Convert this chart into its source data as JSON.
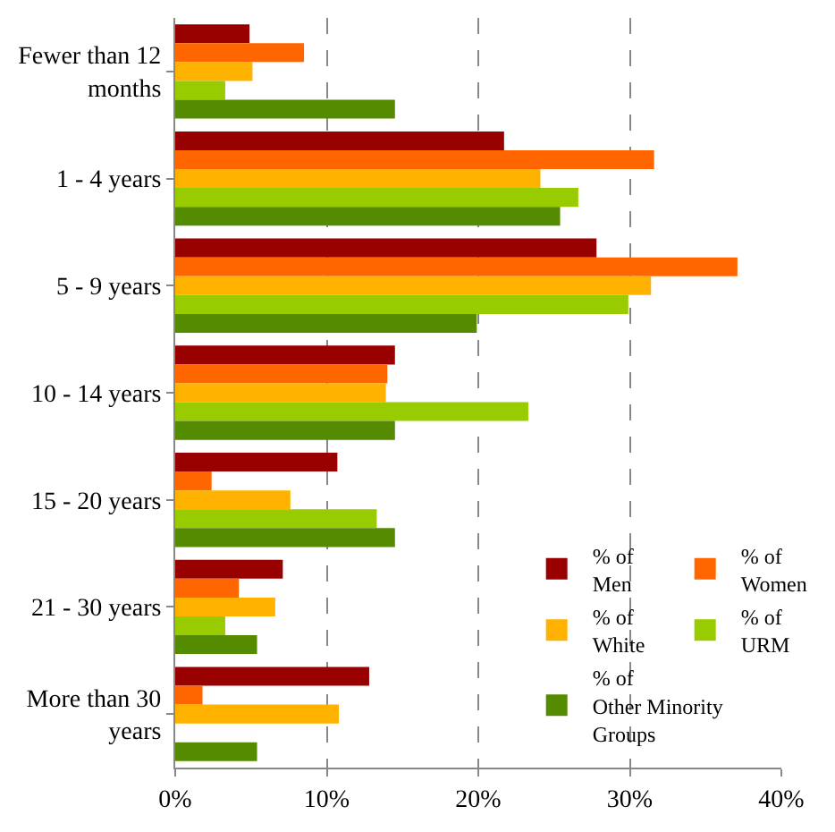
{
  "chart_data": {
    "type": "bar",
    "orientation": "horizontal",
    "categories": [
      "Fewer than 12 months",
      "1 - 4 years",
      "5 - 9 years",
      "10 - 14 years",
      "15 - 20 years",
      "21 - 30 years",
      "More than 30 years"
    ],
    "series": [
      {
        "name": "% of Men",
        "color": "#990000",
        "values": [
          4.9,
          21.7,
          27.8,
          14.5,
          10.7,
          7.1,
          12.8
        ]
      },
      {
        "name": "% of Women",
        "color": "#ff6600",
        "values": [
          8.5,
          31.6,
          37.1,
          14.0,
          2.4,
          4.2,
          1.8
        ]
      },
      {
        "name": "% of White",
        "color": "#ffb300",
        "values": [
          5.1,
          24.1,
          31.4,
          13.9,
          7.6,
          6.6,
          10.8
        ]
      },
      {
        "name": "% of URM",
        "color": "#99cc00",
        "values": [
          3.3,
          26.6,
          29.9,
          23.3,
          13.3,
          3.3,
          0
        ]
      },
      {
        "name": "% of Other Minority Groups",
        "color": "#558b00",
        "values": [
          14.5,
          25.4,
          19.9,
          14.5,
          14.5,
          5.4,
          5.4
        ]
      }
    ],
    "xlim": [
      0,
      40
    ],
    "xticks": [
      {
        "value": 0,
        "label": "0%"
      },
      {
        "value": 10,
        "label": "10%"
      },
      {
        "value": 20,
        "label": "20%"
      },
      {
        "value": 30,
        "label": "30%"
      },
      {
        "value": 40,
        "label": "40%"
      }
    ],
    "grid": "x",
    "legend": "bottom right"
  }
}
